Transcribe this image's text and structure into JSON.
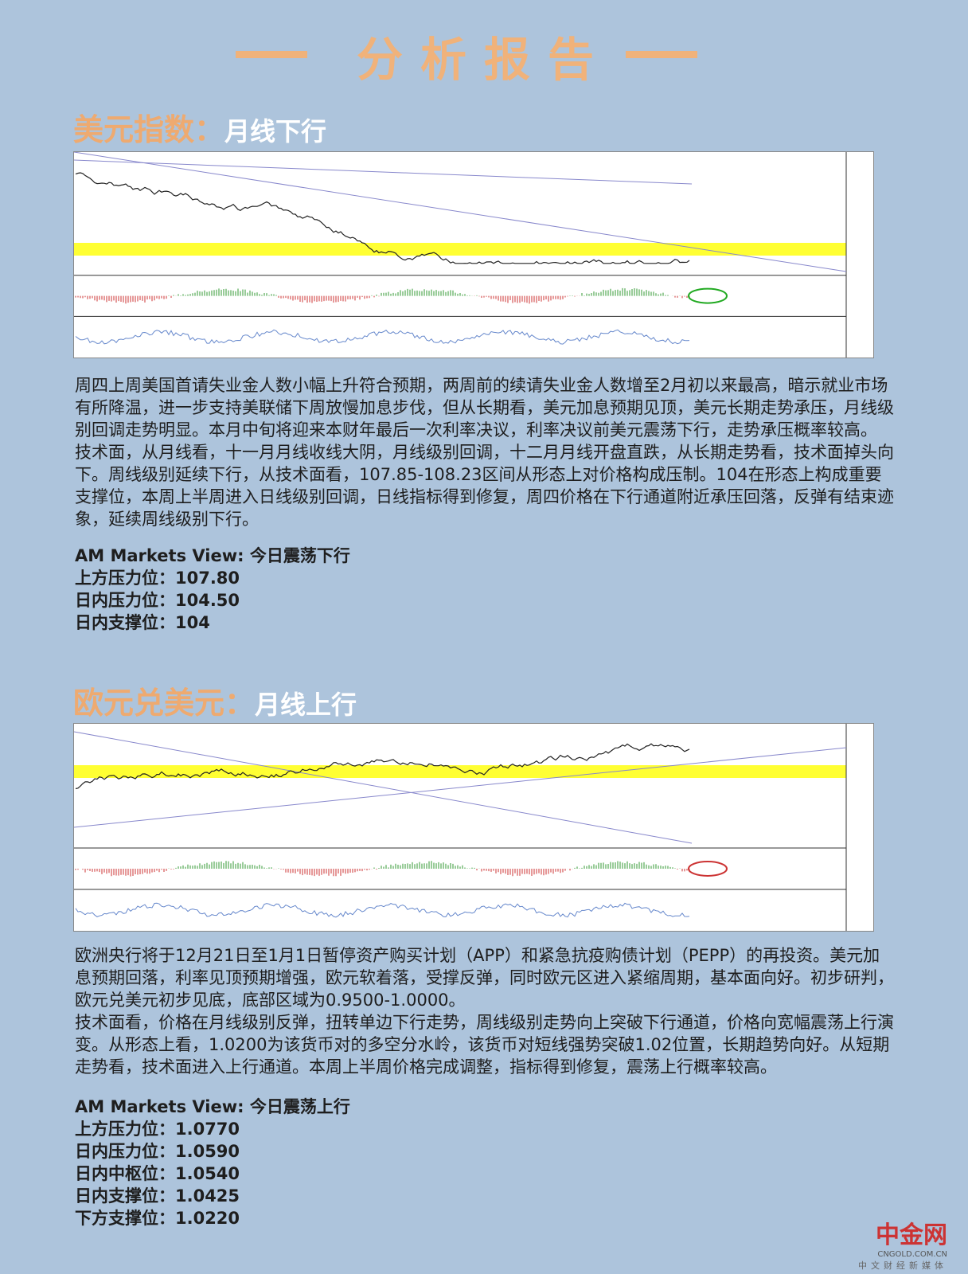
{
  "header": {
    "title": "分析报告"
  },
  "sections": [
    {
      "heading": "美元指数：",
      "subheading": "月线下行",
      "paragraphs": [
        "周四上周美国首请失业金人数小幅上升符合预期，两周前的续请失业金人数增至2月初以来最高，暗示就业市场有所降温，进一步支持美联储下周放慢加息步伐，但从长期看，美元加息预期见顶，美元长期走势承压，月线级别回调走势明显。本月中旬将迎来本财年最后一次利率决议，利率决议前美元震荡下行，走势承压概率较高。",
        "技术面，从月线看，十一月月线收线大阴，月线级别回调，十二月月线开盘直跌，从长期走势看，技术面掉头向下。周线级别延续下行，从技术面看，107.85-108.23区间从形态上对价格构成压制。104在形态上构成重要支撑位，本周上半周进入日线级别回调，日线指标得到修复，周四价格在下行通道附近承压回落，反弹有结束迹象，延续周线级别下行。"
      ],
      "view": "AM Markets View: 今日震荡下行",
      "levels": [
        "上方压力位：107.80",
        "日内压力位：104.50",
        "日内支撑位：104"
      ]
    },
    {
      "heading": "欧元兑美元：",
      "subheading": "月线上行",
      "paragraphs": [
        "欧洲央行将于12月21日至1月1日暂停资产购买计划（APP）和紧急抗疫购债计划（PEPP）的再投资。美元加息预期回落，利率见顶预期增强，欧元软着落，受撑反弹，同时欧元区进入紧缩周期，基本面向好。初步研判，欧元兑美元初步见底，底部区域为0.9500-1.0000。",
        "技术面看，价格在月线级别反弹，扭转单边下行走势，周线级别走势向上突破下行通道，价格向宽幅震荡上行演变。从形态上看，1.0200为该货币对的多空分水岭，该货币对短线强势突破1.02位置，长期趋势向好。从短期走势看，技术面进入上行通道。本周上半周价格完成调整，指标得到修复，震荡上行概率较高。"
      ],
      "view": "AM Markets View: 今日震荡上行",
      "levels": [
        "上方压力位：1.0770",
        "日内压力位：1.0590",
        "日内中枢位：1.0540",
        "日内支撑位：1.0425",
        "下方支撑位：1.0220"
      ]
    }
  ],
  "watermark": {
    "brand": "中金网",
    "domain": "CNGOLD.COM.CN",
    "tagline": "中文财经新媒体"
  }
}
